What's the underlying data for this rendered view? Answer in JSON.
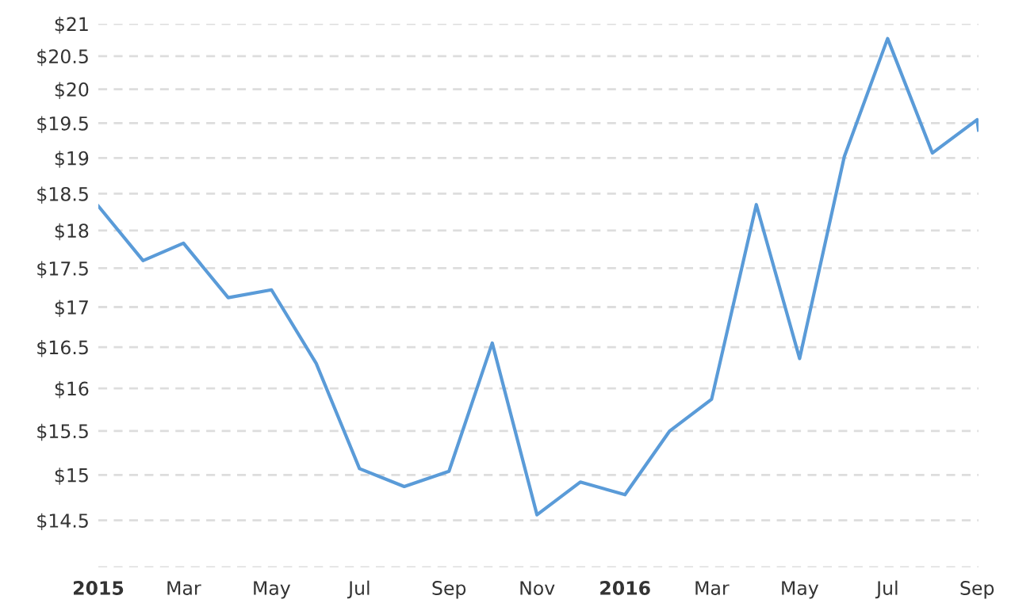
{
  "chart_data": {
    "type": "line",
    "log": "y",
    "grid": "y",
    "marker": "none",
    "line_style": "solid",
    "x": [
      "2015-01-01",
      "2015-02-01",
      "2015-03-01",
      "2015-04-01",
      "2015-05-01",
      "2015-06-01",
      "2015-07-01",
      "2015-08-01",
      "2015-09-01",
      "2015-10-01",
      "2015-11-01",
      "2015-12-01",
      "2016-01-01",
      "2016-02-01",
      "2016-03-01",
      "2016-04-01",
      "2016-05-01",
      "2016-06-01",
      "2016-07-01",
      "2016-08-01",
      "2016-09-01",
      "2016-09-02"
    ],
    "series": [
      {
        "color": "#5a9bd8",
        "values": [
          18.33,
          17.6,
          17.83,
          17.12,
          17.22,
          16.3,
          15.07,
          14.87,
          15.04,
          16.55,
          14.56,
          14.92,
          14.78,
          15.5,
          15.87,
          18.35,
          16.36,
          19.02,
          20.77,
          19.07,
          19.55,
          19.4
        ]
      }
    ],
    "xlim": [
      "2015-01-01",
      "2016-09-02"
    ],
    "xticks": [
      {
        "value": "2015-01-01",
        "label": "2015"
      },
      {
        "value": "2015-03-01",
        "label": "Mar"
      },
      {
        "value": "2015-05-01",
        "label": "May"
      },
      {
        "value": "2015-07-01",
        "label": "Jul"
      },
      {
        "value": "2015-09-01",
        "label": "Sep"
      },
      {
        "value": "2015-11-01",
        "label": "Nov"
      },
      {
        "value": "2016-01-01",
        "label": "2016"
      },
      {
        "value": "2016-03-01",
        "label": "Mar"
      },
      {
        "value": "2016-05-01",
        "label": "May"
      },
      {
        "value": "2016-07-01",
        "label": "Jul"
      },
      {
        "value": "2016-09-01",
        "label": "Sep"
      }
    ],
    "ylim": [
      14,
      21
    ],
    "yticks": [
      {
        "value": 14,
        "label": null
      },
      {
        "value": 14.5,
        "label": "$14.5"
      },
      {
        "value": 15,
        "label": "$15"
      },
      {
        "value": 15.5,
        "label": "$15.5"
      },
      {
        "value": 16,
        "label": "$16"
      },
      {
        "value": 16.5,
        "label": "$16.5"
      },
      {
        "value": 17,
        "label": "$17"
      },
      {
        "value": 17.5,
        "label": "$17.5"
      },
      {
        "value": 18,
        "label": "$18"
      },
      {
        "value": 18.5,
        "label": "$18.5"
      },
      {
        "value": 19,
        "label": "$19"
      },
      {
        "value": 19.5,
        "label": "$19.5"
      },
      {
        "value": 20,
        "label": "$20"
      },
      {
        "value": 20.5,
        "label": "$20.5"
      },
      {
        "value": 21,
        "label": "$21"
      }
    ]
  }
}
